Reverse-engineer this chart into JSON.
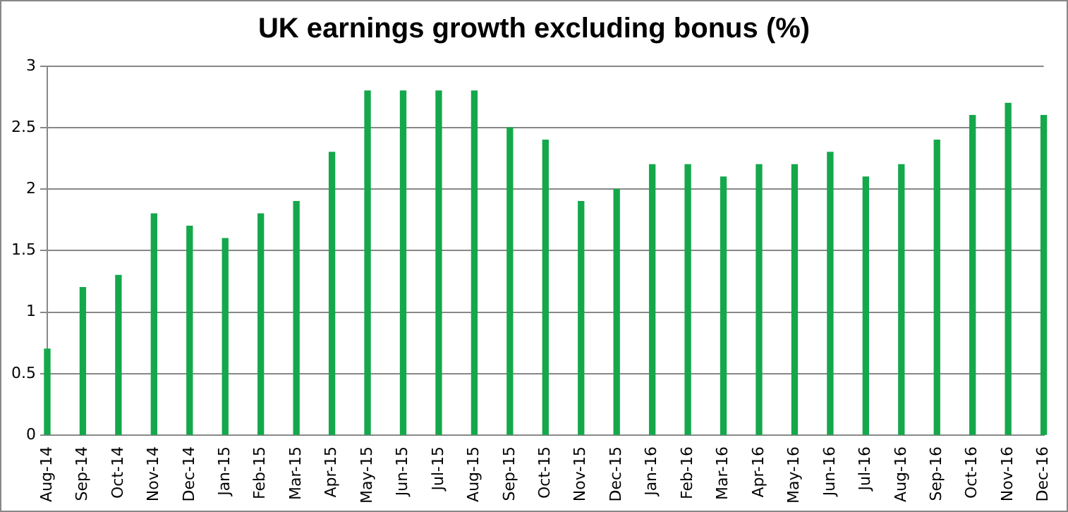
{
  "chart_data": {
    "type": "bar",
    "title": "UK earnings growth excluding bonus (%)",
    "categories": [
      "Aug-14",
      "Sep-14",
      "Oct-14",
      "Nov-14",
      "Dec-14",
      "Jan-15",
      "Feb-15",
      "Mar-15",
      "Apr-15",
      "May-15",
      "Jun-15",
      "Jul-15",
      "Aug-15",
      "Sep-15",
      "Oct-15",
      "Nov-15",
      "Dec-15",
      "Jan-16",
      "Feb-16",
      "Mar-16",
      "Apr-16",
      "May-16",
      "Jun-16",
      "Jul-16",
      "Aug-16",
      "Sep-16",
      "Oct-16",
      "Nov-16",
      "Dec-16"
    ],
    "values": [
      0.7,
      1.2,
      1.3,
      1.8,
      1.7,
      1.6,
      1.8,
      1.9,
      2.3,
      2.8,
      2.8,
      2.8,
      2.8,
      2.5,
      2.4,
      1.9,
      2.0,
      2.2,
      2.2,
      2.1,
      2.2,
      2.2,
      2.3,
      2.1,
      2.2,
      2.4,
      2.6,
      2.7,
      2.6
    ],
    "color": "#14a84b",
    "ylim": [
      0,
      3
    ],
    "yticks": [
      0,
      0.5,
      1,
      1.5,
      2,
      2.5,
      3
    ],
    "grid": "y"
  }
}
